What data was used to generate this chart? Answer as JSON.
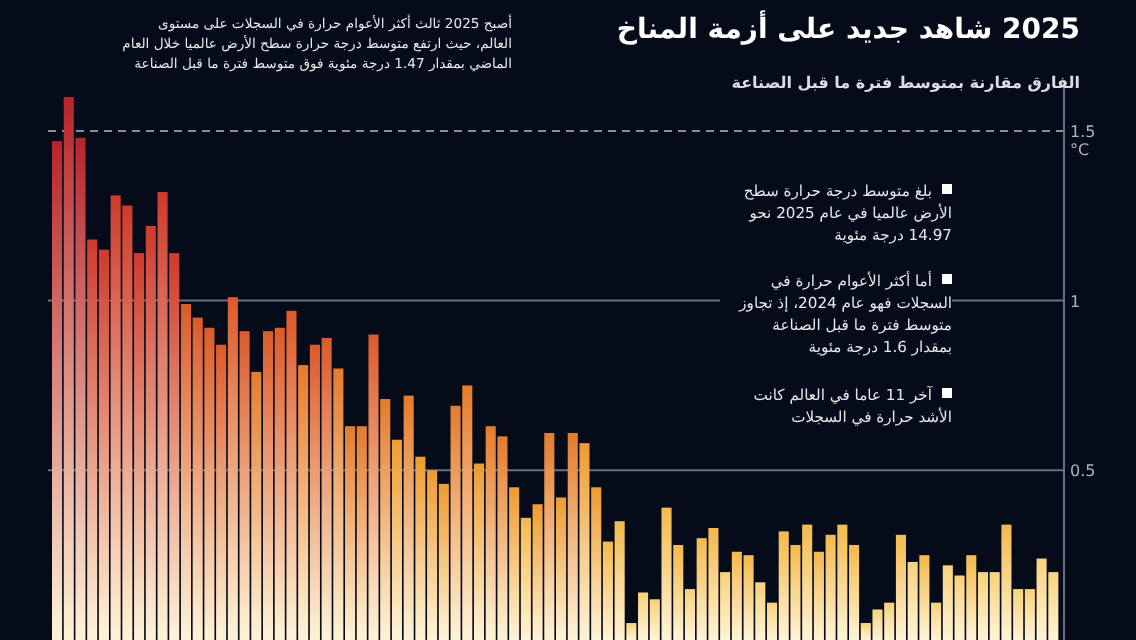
{
  "chart_data": {
    "type": "bar",
    "title": "2025 شاهد جديد على أزمة المناخ",
    "subtitle": "الفارق مقارنة بمتوسط فترة ما قبل الصناعة",
    "ylabel": "°C",
    "annotations": [
      "أصبح 2025 ثالث أكثر الأعوام حرارة في السجلات على مستوى العالم، حيث ارتفع متوسط درجة حرارة سطح الأرض عالميا خلال العام الماضي بمقدار 1.47 درجة مئوية فوق متوسط فترة ما قبل الصناعة",
      "بلغ متوسط درجة حرارة سطح الأرض عالميا في عام 2025 نحو 14.97 درجة مئوية",
      "أما أكثر الأعوام حرارة في السجلات فهو عام 2024، إذ تجاوز متوسط فترة ما قبل الصناعة بمقدار 1.6 درجة مئوية",
      "آخر 11 عاما في العالم كانت الأشد حرارة في السجلات"
    ],
    "categories": [
      null,
      null,
      null,
      null,
      null,
      null,
      null,
      null,
      null,
      null,
      null,
      null,
      null,
      null,
      null,
      null,
      null,
      null,
      null,
      null,
      null,
      null,
      null,
      null,
      null,
      null,
      null,
      null,
      null,
      null,
      null,
      null,
      null,
      null,
      null,
      null,
      null,
      null,
      null,
      null,
      null,
      null,
      null,
      null,
      null,
      null,
      null,
      null,
      null,
      null,
      null,
      null,
      null,
      null,
      null,
      null,
      null,
      null,
      null,
      null,
      null,
      null,
      null,
      null,
      null,
      null,
      null,
      null,
      null,
      null,
      null,
      null,
      null,
      null,
      null,
      null,
      null,
      null,
      null,
      null,
      null,
      null,
      null,
      null,
      null,
      null
    ],
    "values": [
      1.47,
      1.6,
      1.48,
      1.18,
      1.15,
      1.31,
      1.28,
      1.14,
      1.22,
      1.32,
      1.14,
      0.99,
      0.95,
      0.92,
      0.87,
      1.01,
      0.91,
      0.79,
      0.91,
      0.92,
      0.97,
      0.81,
      0.87,
      0.89,
      0.8,
      0.63,
      0.63,
      0.9,
      0.71,
      0.59,
      0.72,
      0.54,
      0.5,
      0.46,
      0.69,
      0.75,
      0.52,
      0.63,
      0.6,
      0.45,
      0.36,
      0.4,
      0.61,
      0.42,
      0.61,
      0.58,
      0.45,
      0.29,
      0.35,
      0.05,
      0.14,
      0.12,
      0.39,
      0.28,
      0.15,
      0.3,
      0.33,
      0.2,
      0.26,
      0.25,
      0.17,
      0.11,
      0.32,
      0.28,
      0.34,
      0.26,
      0.31,
      0.34,
      0.28,
      0.05,
      0.09,
      0.11,
      0.31,
      0.23,
      0.25,
      0.11,
      0.22,
      0.19,
      0.25,
      0.2,
      0.2,
      0.34,
      0.15,
      0.15,
      0.24,
      0.2
    ],
    "colors": [
      "#b8232b",
      "#b8232b",
      "#b8232b",
      "#cf3a2c",
      "#cf3a2c",
      "#cf3a2c",
      "#cf3a2c",
      "#cf3a2c",
      "#cf3a2c",
      "#cf3a2c",
      "#cf3a2c",
      "#dc5a2a",
      "#dc5a2a",
      "#dc5a2a",
      "#dc5a2a",
      "#dc5a2a",
      "#dc5a2a",
      "#e57b2b",
      "#dc5a2a",
      "#dc5a2a",
      "#dc5a2a",
      "#e57b2b",
      "#dc5a2a",
      "#dc5a2a",
      "#e57b2b",
      "#e57b2b",
      "#e57b2b",
      "#dc5a2a",
      "#e57b2b",
      "#ee9b30",
      "#e57b2b",
      "#ee9b30",
      "#ee9b30",
      "#ee9b30",
      "#e57b2b",
      "#e57b2b",
      "#ee9b30",
      "#e57b2b",
      "#e57b2b",
      "#ee9b30",
      "#f4b94a",
      "#ee9b30",
      "#e57b2b",
      "#ee9b30",
      "#e57b2b",
      "#ee9b30",
      "#ee9b30",
      "#f4b94a",
      "#f4b94a",
      "#f8d27a",
      "#f8d27a",
      "#f8d27a",
      "#f4b94a",
      "#f4b94a",
      "#f8d27a",
      "#f4b94a",
      "#f4b94a",
      "#f8d27a",
      "#f4b94a",
      "#f4b94a",
      "#f8d27a",
      "#f8d27a",
      "#f4b94a",
      "#f4b94a",
      "#f4b94a",
      "#f4b94a",
      "#f4b94a",
      "#f4b94a",
      "#f4b94a",
      "#f8d27a",
      "#f8d27a",
      "#f8d27a",
      "#f4b94a",
      "#f8d27a",
      "#f4b94a",
      "#f8d27a",
      "#f8d27a",
      "#f8d27a",
      "#f4b94a",
      "#f8d27a",
      "#f8d27a",
      "#f4b94a",
      "#f8d27a",
      "#f8d27a",
      "#f8d27a",
      "#f8d27a"
    ],
    "ylim": [
      0,
      1.65
    ],
    "yticks": [
      0.5,
      1,
      1.5
    ],
    "grid": "y",
    "ref_lines": [
      {
        "axis": "y",
        "value": 1.5,
        "line_style": "dashed",
        "color": "#8a8f9c"
      }
    ]
  }
}
